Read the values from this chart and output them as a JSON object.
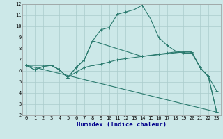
{
  "xlabel": "Humidex (Indice chaleur)",
  "bg_color": "#cce8e8",
  "line_color": "#2a7a6e",
  "grid_color": "#aacccc",
  "xlim": [
    -0.5,
    23.5
  ],
  "ylim": [
    2,
    12
  ],
  "xticks": [
    0,
    1,
    2,
    3,
    4,
    5,
    6,
    7,
    8,
    9,
    10,
    11,
    12,
    13,
    14,
    15,
    16,
    17,
    18,
    19,
    20,
    21,
    22,
    23
  ],
  "yticks": [
    2,
    3,
    4,
    5,
    6,
    7,
    8,
    9,
    10,
    11,
    12
  ],
  "line1_x": [
    0,
    1,
    2,
    3,
    4,
    5,
    6,
    7,
    8,
    9,
    10,
    11,
    12,
    13,
    14,
    15,
    16,
    17,
    18,
    19,
    20,
    21,
    22,
    23
  ],
  "line1_y": [
    6.5,
    6.1,
    6.4,
    6.5,
    6.1,
    5.4,
    6.3,
    7.0,
    8.7,
    9.7,
    9.9,
    11.1,
    11.3,
    11.5,
    11.9,
    10.7,
    9.0,
    8.3,
    7.8,
    7.6,
    7.6,
    6.3,
    5.5,
    4.2
  ],
  "line2_x": [
    0,
    1,
    2,
    3,
    4,
    5,
    6,
    7,
    8,
    9,
    10,
    11,
    12,
    13,
    14,
    15,
    16,
    17,
    18,
    19,
    20,
    21,
    22,
    23
  ],
  "line2_y": [
    6.5,
    6.1,
    6.4,
    6.5,
    6.1,
    5.4,
    5.9,
    6.3,
    6.5,
    6.6,
    6.8,
    7.0,
    7.1,
    7.2,
    7.3,
    7.4,
    7.5,
    7.6,
    7.7,
    7.7,
    7.7,
    6.3,
    5.5,
    2.3
  ],
  "line3_x": [
    0,
    23
  ],
  "line3_y": [
    6.5,
    2.3
  ],
  "line4_x": [
    0,
    3,
    4,
    5,
    6,
    7,
    8,
    14,
    19,
    20,
    21,
    22,
    23
  ],
  "line4_y": [
    6.5,
    6.5,
    6.1,
    5.4,
    6.3,
    7.0,
    8.7,
    7.3,
    7.7,
    7.7,
    6.3,
    5.5,
    2.3
  ],
  "xlabel_color": "#00008b",
  "xlabel_fontsize": 6.5,
  "tick_fontsize": 5.0,
  "linewidth": 0.8,
  "markersize": 2.5
}
